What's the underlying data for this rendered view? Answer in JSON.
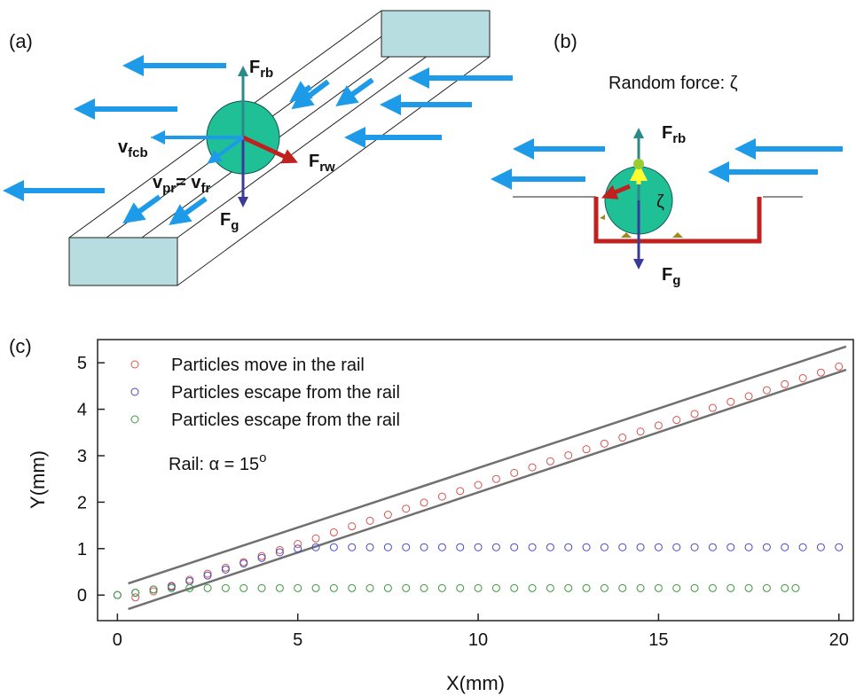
{
  "panel_a": {
    "label": "(a)",
    "f_rb": {
      "main": "F",
      "sub": "rb"
    },
    "f_rw": {
      "main": "F",
      "sub": "rw"
    },
    "v_fcb": {
      "main": "v",
      "sub": "fcb"
    },
    "v_pr": {
      "main": "v",
      "sub": "pr",
      "mid": "= v",
      "sub2": "fr"
    },
    "f_g": {
      "main": "F",
      "sub": "g"
    }
  },
  "panel_b": {
    "label": "(b)",
    "random_force": "Random force: ζ",
    "zeta": "ζ",
    "f_rb": {
      "main": "F",
      "sub": "rb"
    },
    "f_g": {
      "main": "F",
      "sub": "g"
    }
  },
  "chart_data": {
    "type": "scatter",
    "panel_label": "(c)",
    "x_label": "X(mm)",
    "y_label": "Y(mm)",
    "xlim": [
      -0.55,
      20.4
    ],
    "ylim": [
      -0.55,
      5.5
    ],
    "xticks": [
      0,
      5,
      10,
      15,
      20
    ],
    "yticks": [
      0,
      1,
      2,
      3,
      4,
      5
    ],
    "series": [
      {
        "name": "Particles move in the rail",
        "color": "#d9534f",
        "x": [
          0.5,
          1,
          1.5,
          2,
          2.5,
          3,
          3.5,
          4,
          4.5,
          5,
          5.5,
          6,
          6.5,
          7,
          7.5,
          8,
          8.5,
          9,
          9.5,
          10,
          10.5,
          11,
          11.5,
          12,
          12.5,
          13,
          13.5,
          14,
          14.5,
          15,
          15.5,
          16,
          16.5,
          17,
          17.5,
          18,
          18.5,
          19,
          19.5,
          20
        ],
        "values": [
          -0.05,
          0.08,
          0.2,
          0.33,
          0.46,
          0.59,
          0.71,
          0.84,
          0.97,
          1.1,
          1.22,
          1.35,
          1.48,
          1.6,
          1.73,
          1.86,
          1.99,
          2.12,
          2.24,
          2.37,
          2.5,
          2.63,
          2.75,
          2.88,
          3.01,
          3.14,
          3.26,
          3.39,
          3.52,
          3.65,
          3.77,
          3.9,
          4.03,
          4.16,
          4.28,
          4.41,
          4.54,
          4.67,
          4.79,
          4.92
        ]
      },
      {
        "name": "Particles escape from the rail",
        "color": "#4a4ac0",
        "x": [
          0,
          0.5,
          1,
          1.5,
          2,
          2.5,
          3,
          3.5,
          4,
          4.5,
          5,
          5.5,
          6,
          6.5,
          7,
          7.5,
          8,
          8.5,
          9,
          9.5,
          10,
          10.5,
          11,
          11.5,
          12,
          12.5,
          13,
          13.5,
          14,
          14.5,
          15,
          15.5,
          16,
          16.5,
          17,
          17.5,
          18,
          18.5,
          19,
          19.5,
          20
        ],
        "values": [
          0,
          0.05,
          0.12,
          0.18,
          0.3,
          0.42,
          0.55,
          0.68,
          0.8,
          0.92,
          1.0,
          1.03,
          1.03,
          1.03,
          1.03,
          1.03,
          1.03,
          1.03,
          1.03,
          1.03,
          1.03,
          1.03,
          1.03,
          1.03,
          1.03,
          1.03,
          1.03,
          1.03,
          1.03,
          1.03,
          1.03,
          1.03,
          1.03,
          1.03,
          1.03,
          1.03,
          1.03,
          1.03,
          1.03,
          1.03,
          1.03
        ]
      },
      {
        "name": "Particles escape from the rail",
        "color": "#3a9a3a",
        "x": [
          0,
          0.5,
          1,
          1.5,
          2,
          2.5,
          3,
          3.5,
          4,
          4.5,
          5,
          5.5,
          6,
          6.5,
          7,
          7.5,
          8,
          8.5,
          9,
          9.5,
          10,
          10.5,
          11,
          11.5,
          12,
          12.5,
          13,
          13.5,
          14,
          14.5,
          15,
          15.5,
          16,
          16.5,
          17,
          17.5,
          18,
          18.5,
          18.8
        ],
        "values": [
          0,
          0.05,
          0.12,
          0.15,
          0.15,
          0.15,
          0.15,
          0.15,
          0.15,
          0.15,
          0.15,
          0.15,
          0.15,
          0.15,
          0.15,
          0.15,
          0.15,
          0.15,
          0.15,
          0.15,
          0.15,
          0.15,
          0.15,
          0.15,
          0.15,
          0.15,
          0.15,
          0.15,
          0.15,
          0.15,
          0.15,
          0.15,
          0.15,
          0.15,
          0.15,
          0.15,
          0.15,
          0.15,
          0.15
        ]
      }
    ],
    "legend_note": {
      "text": "Rail: α = 15",
      "sup": "o"
    },
    "rail_lines": [
      {
        "x": [
          0.3,
          20.2
        ],
        "y": [
          0.25,
          5.35
        ],
        "color": "#707070"
      },
      {
        "x": [
          0.3,
          20.2
        ],
        "y": [
          -0.3,
          4.85
        ],
        "color": "#707070"
      }
    ]
  }
}
